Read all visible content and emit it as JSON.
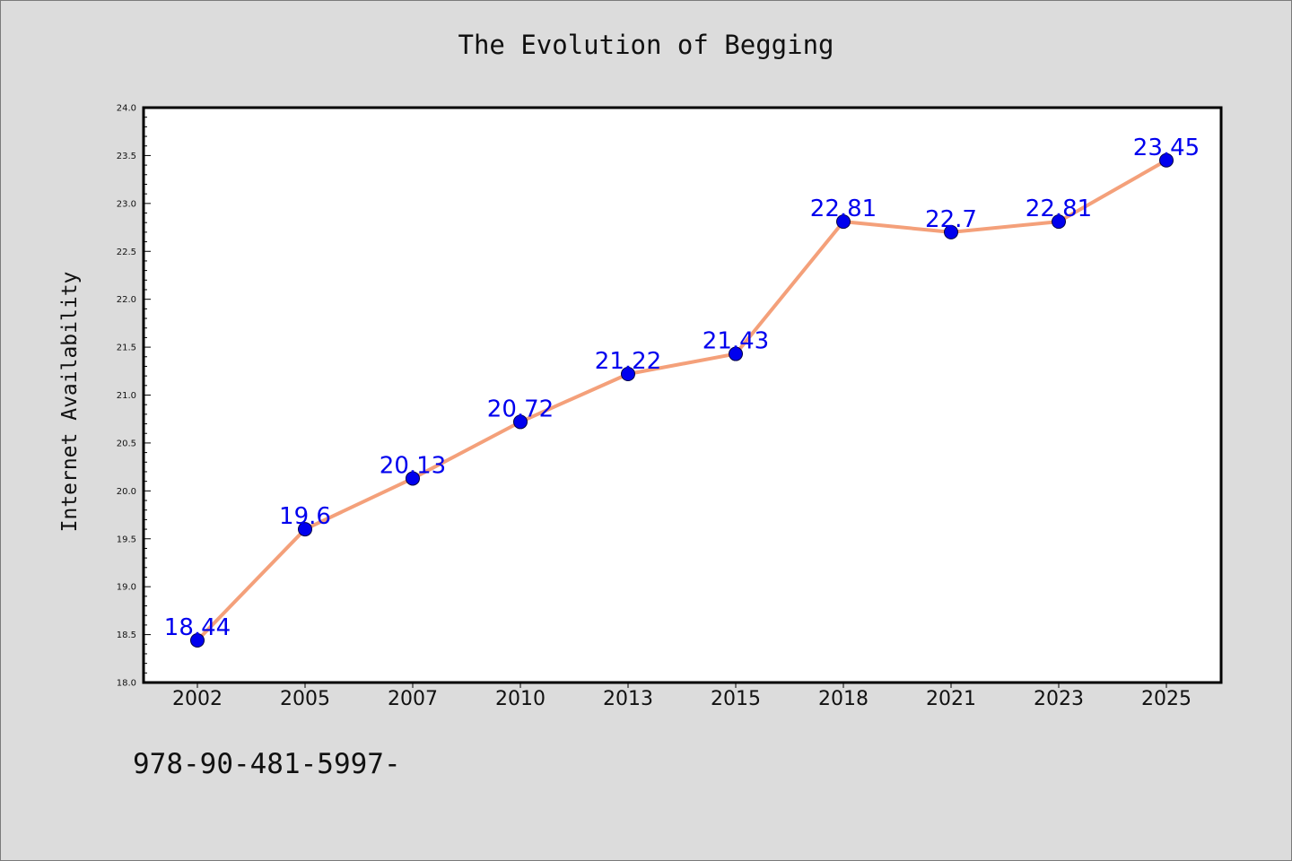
{
  "chart_data": {
    "type": "line",
    "title": "The Evolution of Begging",
    "xlabel": "",
    "ylabel": "Internet Availability",
    "categories": [
      "2002",
      "2005",
      "2007",
      "2010",
      "2013",
      "2015",
      "2018",
      "2021",
      "2023",
      "2025"
    ],
    "series": [
      {
        "values": [
          18.44,
          19.6,
          20.13,
          20.72,
          21.22,
          21.43,
          22.81,
          22.7,
          22.81,
          23.45
        ],
        "data_labels": [
          "18.44",
          "19.6",
          "20.13",
          "20.72",
          "21.22",
          "21.43",
          "22.81",
          "22.7",
          "22.81",
          "23.45"
        ],
        "line_color": "#f4a07a",
        "marker_color": "#0000ee",
        "label_color": "#0000ee"
      }
    ],
    "ylim": [
      18.0,
      24.0
    ],
    "yticks": [
      "18.0",
      "18.5",
      "19.0",
      "19.5",
      "20.0",
      "20.5",
      "21.0",
      "21.5",
      "22.0",
      "22.5",
      "23.0",
      "23.5",
      "24.0"
    ],
    "grid": false,
    "legend": "none"
  },
  "footer": {
    "code": "978-90-481-5997-"
  },
  "colors": {
    "background": "#dcdcdc",
    "plot_area": "#ffffff"
  }
}
